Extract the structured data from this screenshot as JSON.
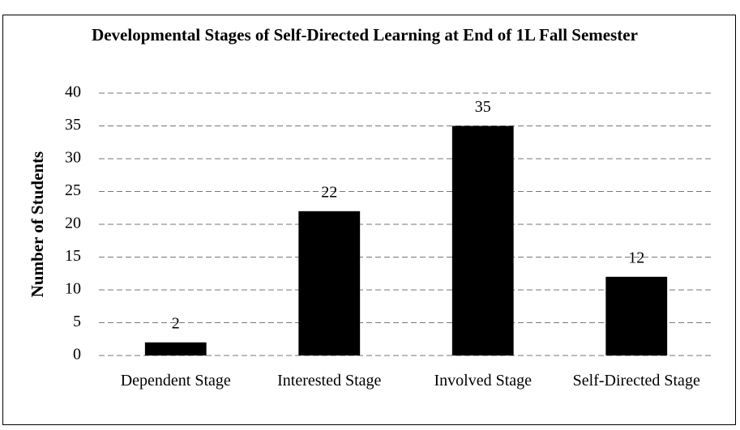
{
  "chart_data": {
    "type": "bar",
    "title": "Developmental Stages of Self-Directed Learning at End of 1L Fall Semester",
    "y_label": "Number of Students",
    "categories": [
      "Dependent Stage",
      "Interested Stage",
      "Involved Stage",
      "Self-Directed Stage"
    ],
    "values": [
      2,
      22,
      35,
      12
    ],
    "color": "#000000",
    "ylim": [
      0,
      40
    ],
    "yticks": [
      0,
      5,
      10,
      15,
      20,
      25,
      30,
      35,
      40
    ],
    "grid": true
  }
}
